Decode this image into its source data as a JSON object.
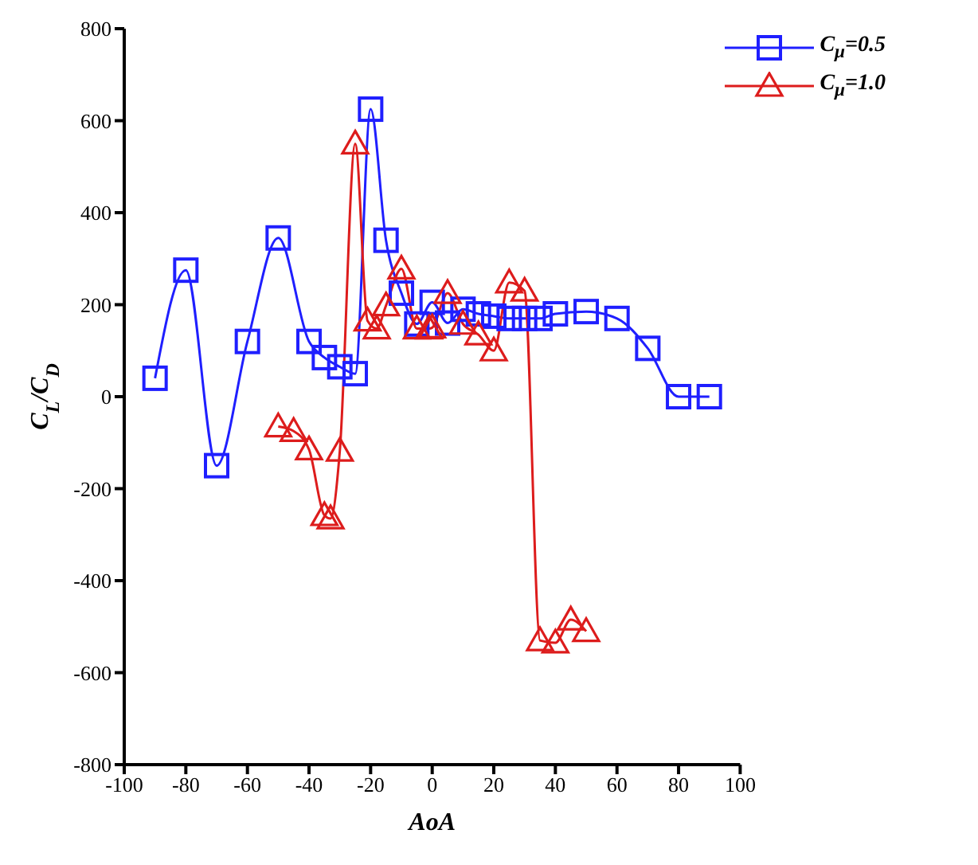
{
  "chart_data": {
    "type": "line",
    "xlabel": "AoA",
    "ylabel": "C$_{L}$/C$_{D}$",
    "xlim": [
      -100,
      100
    ],
    "xticks": [
      -100,
      -80,
      -60,
      -40,
      -20,
      0,
      20,
      40,
      60,
      80,
      100
    ],
    "ylim": [
      -800,
      800
    ],
    "yticks": [
      -800,
      -600,
      -400,
      -200,
      0,
      200,
      400,
      600,
      800
    ],
    "legend": "top right",
    "series": [
      {
        "name": "C$_{μ}$=0.5",
        "color": "#1f1fff",
        "marker": "square",
        "x": [
          -90,
          -80,
          -70,
          -60,
          -50,
          -40,
          -35,
          -30,
          -25,
          -20,
          -15,
          -10,
          -5,
          0,
          5,
          10,
          15,
          20,
          25,
          30,
          35,
          40,
          50,
          60,
          70,
          80,
          90
        ],
        "values": [
          40,
          275,
          -150,
          120,
          345,
          120,
          85,
          65,
          50,
          625,
          340,
          225,
          158,
          205,
          160,
          190,
          180,
          175,
          170,
          170,
          170,
          180,
          185,
          170,
          105,
          0,
          0
        ]
      },
      {
        "name": "C$_{μ}$=1.0",
        "color": "#dd1c1c",
        "marker": "triangle",
        "x": [
          -50,
          -45,
          -40,
          -35,
          -33,
          -30,
          -25,
          -21,
          -18,
          -15,
          -10,
          -5,
          -1,
          0,
          5,
          10,
          15,
          20,
          25,
          30,
          35,
          40,
          45,
          50
        ],
        "values": [
          -65,
          -75,
          -115,
          -258,
          -265,
          -118,
          550,
          165,
          148,
          198,
          278,
          148,
          148,
          150,
          225,
          158,
          135,
          100,
          248,
          230,
          -530,
          -535,
          -485,
          -510
        ]
      }
    ]
  }
}
